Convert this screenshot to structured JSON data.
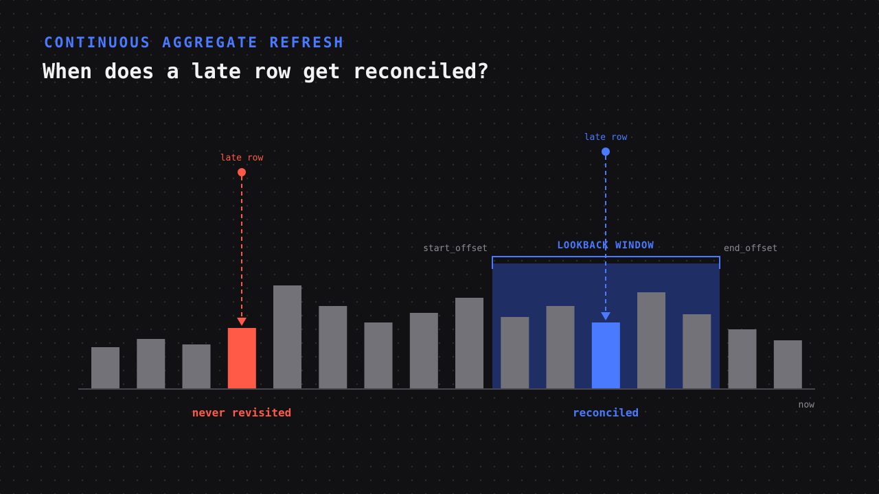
{
  "header": {
    "eyebrow": "CONTINUOUS AGGREGATE REFRESH",
    "title": "When does a late row get reconciled?"
  },
  "diagram": {
    "window_label": "LOOKBACK WINDOW",
    "start_offset_label": "start_offset",
    "end_offset_label": "end_offset",
    "now_label": "now",
    "left_late_row_label": "late row",
    "right_late_row_label": "late row",
    "never_revisited_label": "never revisited",
    "reconciled_label": "reconciled",
    "bars": [
      {
        "value": 60,
        "status": "normal"
      },
      {
        "value": 72,
        "status": "normal"
      },
      {
        "value": 64,
        "status": "normal"
      },
      {
        "value": 88,
        "status": "never-revisited"
      },
      {
        "value": 150,
        "status": "normal"
      },
      {
        "value": 120,
        "status": "normal"
      },
      {
        "value": 96,
        "status": "normal"
      },
      {
        "value": 110,
        "status": "normal"
      },
      {
        "value": 132,
        "status": "normal"
      },
      {
        "value": 104,
        "status": "normal"
      },
      {
        "value": 120,
        "status": "normal"
      },
      {
        "value": 96,
        "status": "reconciled"
      },
      {
        "value": 140,
        "status": "normal"
      },
      {
        "value": 108,
        "status": "normal"
      },
      {
        "value": 86,
        "status": "normal"
      },
      {
        "value": 70,
        "status": "normal"
      }
    ],
    "window": {
      "first_bar": 9,
      "last_bar": 13
    },
    "colors": {
      "bar": "#727278",
      "never_revisited": "#ff5a47",
      "reconciled": "#4a7aff",
      "window_fill": "#1f2f66",
      "window_bracket": "#4a7aff",
      "axis": "#46464c",
      "muted_label": "#8c8c92",
      "background": "#111113"
    }
  }
}
